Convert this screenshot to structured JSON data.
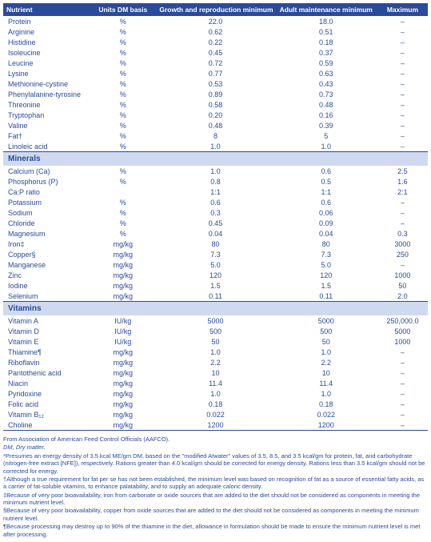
{
  "columns": [
    "Nutrient",
    "Units DM basis",
    "Growth and reproduction minimum",
    "Adult maintenance minimum",
    "Maximum"
  ],
  "colors": {
    "header_bg": "#2b4a9a",
    "header_fg": "#ffffff",
    "section_bg": "#cfdaf0",
    "text": "#2b4a9a"
  },
  "sections": [
    {
      "title": null,
      "rows": [
        {
          "n": "Protein",
          "u": "%",
          "g": "22.0",
          "a": "18.0",
          "m": "–"
        },
        {
          "n": "Arginine",
          "u": "%",
          "g": "0.62",
          "a": "0.51",
          "m": "–"
        },
        {
          "n": "Histidine",
          "u": "%",
          "g": "0.22",
          "a": "0.18",
          "m": "–"
        },
        {
          "n": "Isoleucine",
          "u": "%",
          "g": "0.45",
          "a": "0.37",
          "m": "–"
        },
        {
          "n": "Leucine",
          "u": "%",
          "g": "0.72",
          "a": "0.59",
          "m": "–"
        },
        {
          "n": "Lysine",
          "u": "%",
          "g": "0.77",
          "a": "0.63",
          "m": "–"
        },
        {
          "n": "Methionine-cystine",
          "u": "%",
          "g": "0.53",
          "a": "0.43",
          "m": "–"
        },
        {
          "n": "Phenylalanine-tyrosine",
          "u": "%",
          "g": "0.89",
          "a": "0.73",
          "m": "–"
        },
        {
          "n": "Threonine",
          "u": "%",
          "g": "0.58",
          "a": "0.48",
          "m": "–"
        },
        {
          "n": "Tryptophan",
          "u": "%",
          "g": "0.20",
          "a": "0.16",
          "m": "–"
        },
        {
          "n": "Valine",
          "u": "%",
          "g": "0.48",
          "a": "0.39",
          "m": "–"
        },
        {
          "n": "Fat†",
          "u": "%",
          "g": "8",
          "a": "5",
          "m": "–"
        },
        {
          "n": "Linoleic acid",
          "u": "%",
          "g": "1.0",
          "a": "1.0",
          "m": "–"
        }
      ]
    },
    {
      "title": "Minerals",
      "rows": [
        {
          "n": "Calcium (Ca)",
          "u": "%",
          "g": "1.0",
          "a": "0.6",
          "m": "2.5"
        },
        {
          "n": "Phosphorus (P)",
          "u": "%",
          "g": "0.8",
          "a": "0.5",
          "m": "1.6"
        },
        {
          "n": "Ca:P ratio",
          "u": "",
          "g": "1:1",
          "a": "1:1",
          "m": "2:1"
        },
        {
          "n": "Potassium",
          "u": "%",
          "g": "0.6",
          "a": "0.6",
          "m": "–"
        },
        {
          "n": "Sodium",
          "u": "%",
          "g": "0.3",
          "a": "0.06",
          "m": "–"
        },
        {
          "n": "Chloride",
          "u": "%",
          "g": "0.45",
          "a": "0.09",
          "m": "–"
        },
        {
          "n": "Magnesium",
          "u": "%",
          "g": "0.04",
          "a": "0.04",
          "m": "0.3"
        },
        {
          "n": "Iron‡",
          "u": "mg/kg",
          "g": "80",
          "a": "80",
          "m": "3000"
        },
        {
          "n": "Copper§",
          "u": "mg/kg",
          "g": "7.3",
          "a": "7.3",
          "m": "250"
        },
        {
          "n": "Manganese",
          "u": "mg/kg",
          "g": "5.0",
          "a": "5.0",
          "m": "–"
        },
        {
          "n": "Zinc",
          "u": "mg/kg",
          "g": "120",
          "a": "120",
          "m": "1000"
        },
        {
          "n": "Iodine",
          "u": "mg/kg",
          "g": "1.5",
          "a": "1.5",
          "m": "50"
        },
        {
          "n": "Selenium",
          "u": "mg/kg",
          "g": "0.11",
          "a": "0.11",
          "m": "2.0"
        }
      ]
    },
    {
      "title": "Vitamins",
      "rows": [
        {
          "n": "Vitamin A",
          "u": "IU/kg",
          "g": "5000",
          "a": "5000",
          "m": "250,000.0"
        },
        {
          "n": "Vitamin D",
          "u": "IU/kg",
          "g": "500",
          "a": "500",
          "m": "5000"
        },
        {
          "n": "Vitamin E",
          "u": "IU/kg",
          "g": "50",
          "a": "50",
          "m": "1000"
        },
        {
          "n": "Thiamine¶",
          "u": "mg/kg",
          "g": "1.0",
          "a": "1.0",
          "m": "–"
        },
        {
          "n": "Riboflavin",
          "u": "mg/kg",
          "g": "2.2",
          "a": "2.2",
          "m": "–"
        },
        {
          "n": "Pantothenic acid",
          "u": "mg/kg",
          "g": "10",
          "a": "10",
          "m": "–"
        },
        {
          "n": "Niacin",
          "u": "mg/kg",
          "g": "11.4",
          "a": "11.4",
          "m": "–"
        },
        {
          "n": "Pyridoxine",
          "u": "mg/kg",
          "g": "1.0",
          "a": "1.0",
          "m": "–"
        },
        {
          "n": "Folic acid",
          "u": "mg/kg",
          "g": "0.18",
          "a": "0.18",
          "m": "–"
        },
        {
          "n": "Vitamin B₁₂",
          "u": "mg/kg",
          "g": "0.022",
          "a": "0.022",
          "m": "–"
        },
        {
          "n": "Choline",
          "u": "mg/kg",
          "g": "1200",
          "a": "1200",
          "m": "–"
        }
      ]
    }
  ],
  "footnotes": [
    "From Association of American Feed Control Officials (AAFCO).",
    "DM, Dry matter.",
    "*Presumes an energy density of 3.5 kcal ME/gm DM, based on the \"modified Atwater\" values of 3.5, 8.5, and 3.5 kcal/gm for protein, fat, and carbohydrate (nitrogen-free extract [NFE]), respectively. Rations greater than 4.0 kcal/gm should be corrected for energy density. Rations less than 3.5 kcal/gm should not be corrected for energy.",
    "†Although a true requirement for fat per se has not been established, the minimum level was based on recognition of fat as a source of essential fatty acids, as a carrier of fat-soluble vitamins, to enhance palatability, and to supply an adequate caloric density.",
    "‡Because of very poor bioavailability, iron from carbonate or oxide sources that are added to the diet should not be considered as components in meeting the minimum nutrient level.",
    "§Because of very poor bioavailability, copper from oxide sources that are added to the diet should not be considered as components in meeting the minimum nutrient level.",
    "¶Because processing may destroy up to 90% of the thiamine in the diet, allowance in formulation should be made to ensure the minimum nutrient level is met after processing."
  ]
}
